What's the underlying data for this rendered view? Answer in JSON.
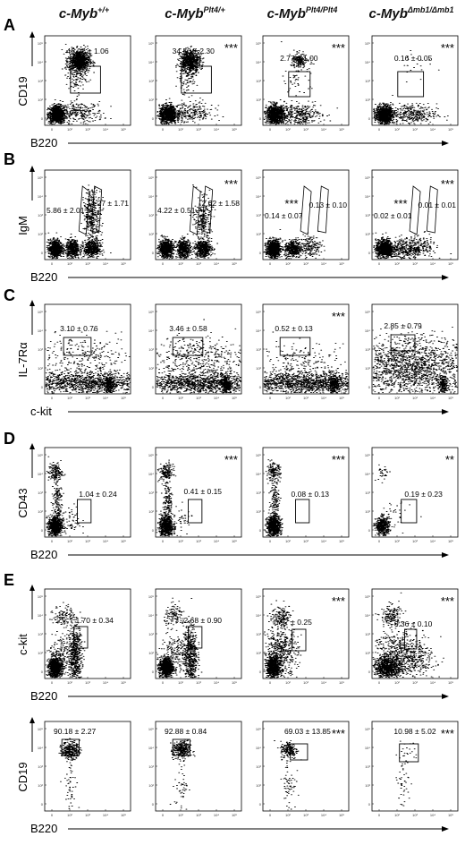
{
  "figure": {
    "columns": [
      {
        "base": "c-Myb",
        "sup": "+/+"
      },
      {
        "base": "c-Myb",
        "sup": "Plt4/+"
      },
      {
        "base": "c-Myb",
        "sup": "Plt4/Plt4"
      },
      {
        "base": "c-Myb",
        "sup": "Δmb1/Δmb1"
      }
    ],
    "tick_labels": [
      "10⁵",
      "10⁴",
      "10³",
      "10²",
      "0",
      "10²",
      "10³",
      "10⁴",
      "10⁵"
    ],
    "rows": [
      {
        "letter": "A",
        "ylabel": "CD19",
        "xlabel": "B220",
        "gate": "rect",
        "values": [
          "46.07 ± 1.06",
          "34.50 ± 2.30",
          "2.77 ± 1.00",
          "0.16 ± 0.05"
        ],
        "stars": [
          "",
          "***",
          "***",
          "***"
        ]
      },
      {
        "letter": "B",
        "ylabel": "IgM",
        "xlabel": "B220",
        "gate": "double",
        "values_left": [
          "5.86 ± 2.01",
          "4.22 ± 0.51",
          "0.14 ± 0.07",
          "0.02 ± 0.01"
        ],
        "values_right": [
          "4.27 ± 1.71",
          "2.62 ± 1.58",
          "0.13 ± 0.10",
          "0.01 ± 0.01"
        ],
        "stars_left": [
          "",
          "",
          "***",
          "***"
        ],
        "stars_right": [
          "",
          "***",
          "",
          "***"
        ]
      },
      {
        "letter": "C",
        "ylabel": "IL-7Rα",
        "xlabel": "c-kit",
        "gate": "rect",
        "values": [
          "3.10 ± 0.76",
          "3.46 ± 0.58",
          "0.52 ± 0.13",
          "2.85 ± 0.79"
        ],
        "stars": [
          "",
          "",
          "***",
          ""
        ]
      },
      {
        "letter": "D",
        "ylabel": "CD43",
        "xlabel": "B220",
        "gate": "rect",
        "values": [
          "1.04 ± 0.24",
          "0.41 ± 0.15",
          "0.08 ± 0.13",
          "0.19 ± 0.23"
        ],
        "stars": [
          "",
          "***",
          "***",
          "**"
        ]
      },
      {
        "letter": "E",
        "ylabel": "c-kit",
        "xlabel": "B220",
        "gate": "rect",
        "values": [
          "1.70 ± 0.34",
          "2.68 ± 0.90",
          "0.97 ± 0.25",
          "0.36 ± 0.10"
        ],
        "stars": [
          "",
          "",
          "***",
          "***"
        ]
      },
      {
        "letter": "",
        "ylabel": "CD19",
        "xlabel": "B220",
        "gate": "rect",
        "values": [
          "90.18 ± 2.27",
          "92.88 ± 0.84",
          "69.03 ± 13.85",
          "10.98 ± 5.02"
        ],
        "stars": [
          "",
          "",
          "***",
          "***"
        ]
      }
    ]
  }
}
